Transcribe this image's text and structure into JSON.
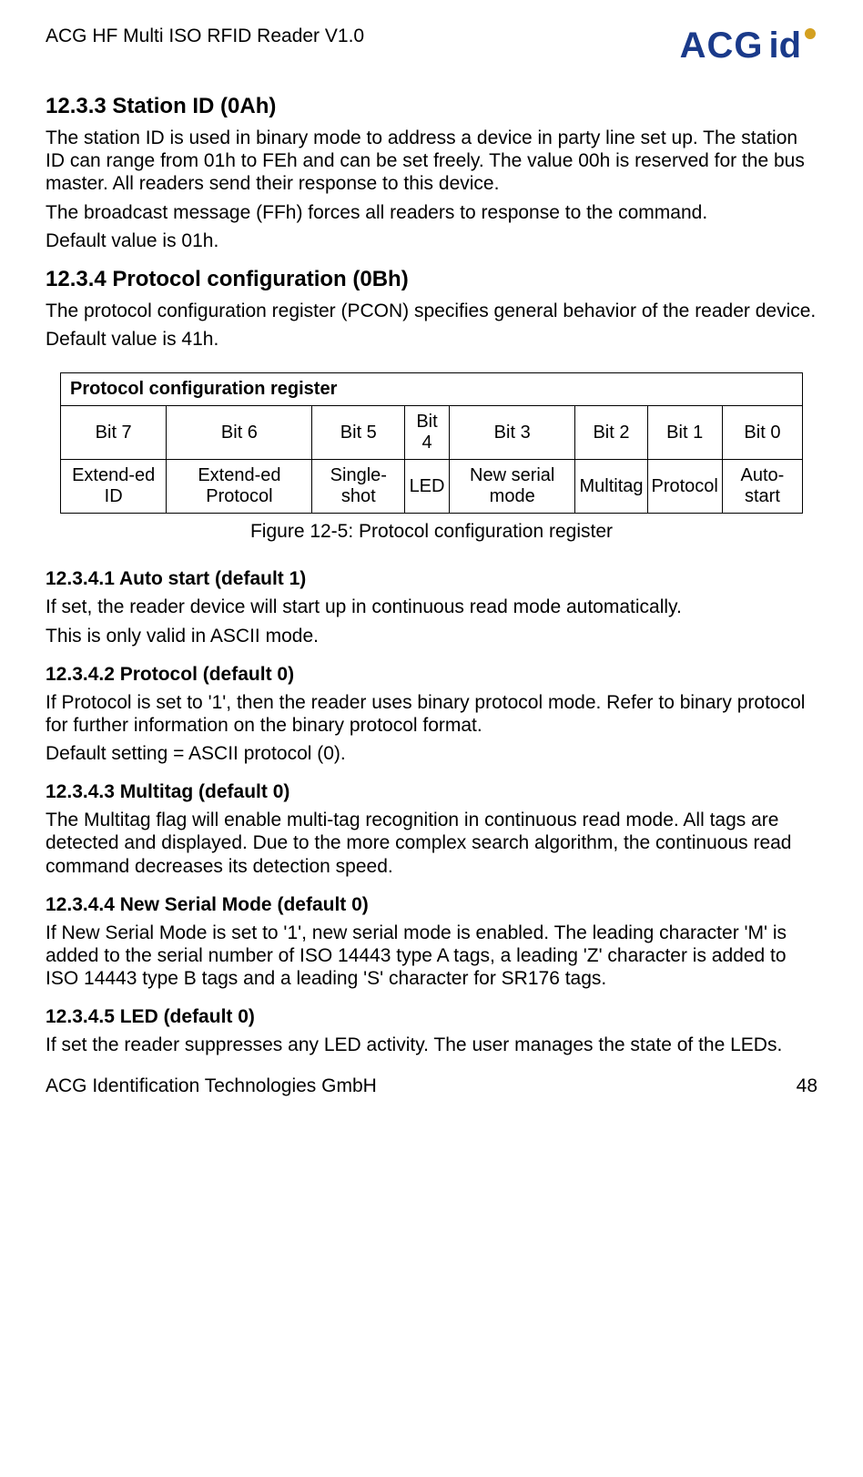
{
  "header": {
    "doc_title": "ACG HF Multi ISO RFID Reader V1.0",
    "logo_text_1": "ACG",
    "logo_text_2": "id"
  },
  "sections": {
    "s1": {
      "heading": "12.3.3 Station ID (0Ah)",
      "p1": "The station ID is used in binary mode to address a device in party line set up. The station ID can range from 01h to FEh and can be set freely. The value 00h is reserved for the bus master. All readers send their response to this device.",
      "p2": "The broadcast message (FFh) forces all readers to response to the command.",
      "p3": "Default value is 01h."
    },
    "s2": {
      "heading": "12.3.4 Protocol configuration (0Bh)",
      "p1": "The protocol configuration register (PCON) specifies general behavior of the reader device.",
      "p2": "Default value is 41h."
    },
    "table": {
      "title": "Protocol configuration register",
      "bits": [
        "Bit 7",
        "Bit 6",
        "Bit 5",
        "Bit 4",
        "Bit 3",
        "Bit 2",
        "Bit 1",
        "Bit 0"
      ],
      "labels": [
        "Extend-ed ID",
        "Extend-ed Protocol",
        "Single-shot",
        "LED",
        "New serial mode",
        "Multitag",
        "Protocol",
        "Auto-start"
      ],
      "caption": "Figure 12-5: Protocol configuration register"
    },
    "sub1": {
      "heading": "12.3.4.1    Auto start (default 1)",
      "p1": "If set, the reader device will start up in continuous read mode automatically.",
      "p2": "This is only valid in ASCII mode."
    },
    "sub2": {
      "heading": "12.3.4.2    Protocol (default 0)",
      "p1": "If Protocol is set to '1', then the reader uses binary protocol mode. Refer to binary protocol for further information on the binary protocol format.",
      "p2": "Default setting = ASCII protocol (0)."
    },
    "sub3": {
      "heading": "12.3.4.3    Multitag (default 0)",
      "p1": "The Multitag flag will enable multi-tag recognition in continuous read mode. All tags are detected and displayed. Due to the more complex search algorithm, the continuous read command decreases its detection speed."
    },
    "sub4": {
      "heading": "12.3.4.4    New Serial Mode (default 0)",
      "p1": "If New Serial Mode is set to '1', new serial mode is enabled. The leading character 'M' is added to the serial number of ISO 14443 type A tags, a leading 'Z' character is added to ISO 14443 type B tags and a leading 'S' character for SR176 tags."
    },
    "sub5": {
      "heading": "12.3.4.5    LED (default 0)",
      "p1": "If set the reader suppresses any LED activity. The user manages the state of the LEDs."
    }
  },
  "footer": {
    "company": "ACG Identification Technologies GmbH",
    "page_no": "48"
  }
}
